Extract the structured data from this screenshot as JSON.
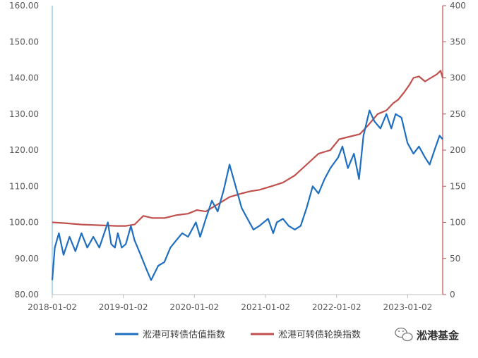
{
  "chart_data": {
    "type": "line",
    "x_ticks": [
      "2018-01-02",
      "2019-01-02",
      "2020-01-02",
      "2021-01-02",
      "2022-01-02",
      "2023-01-02"
    ],
    "y_left": {
      "range": [
        80,
        160
      ],
      "ticks": [
        "80.00",
        "90.00",
        "100.00",
        "110.00",
        "120.00",
        "130.00",
        "140.00",
        "150.00",
        "160.00"
      ]
    },
    "y_right": {
      "range": [
        0,
        400
      ],
      "ticks": [
        "0",
        "50",
        "100",
        "150",
        "200",
        "250",
        "300",
        "350",
        "400"
      ]
    },
    "grid": false,
    "legend_position": "bottom",
    "series": [
      {
        "name": "淞港可转债估值指数",
        "axis": "left",
        "color": "#1f6fc1",
        "points": [
          [
            "2018-01-02",
            84
          ],
          [
            "2018-01-15",
            93
          ],
          [
            "2018-02-05",
            97
          ],
          [
            "2018-03-01",
            91
          ],
          [
            "2018-04-01",
            96
          ],
          [
            "2018-05-01",
            92
          ],
          [
            "2018-06-01",
            97
          ],
          [
            "2018-07-01",
            93
          ],
          [
            "2018-08-01",
            96
          ],
          [
            "2018-09-01",
            93
          ],
          [
            "2018-10-15",
            100
          ],
          [
            "2018-11-01",
            94
          ],
          [
            "2018-11-20",
            93
          ],
          [
            "2018-12-05",
            97
          ],
          [
            "2018-12-25",
            93
          ],
          [
            "2019-01-15",
            94
          ],
          [
            "2019-02-10",
            99
          ],
          [
            "2019-03-01",
            95
          ],
          [
            "2019-04-01",
            91
          ],
          [
            "2019-05-01",
            87
          ],
          [
            "2019-05-25",
            84
          ],
          [
            "2019-07-01",
            88
          ],
          [
            "2019-08-01",
            89
          ],
          [
            "2019-09-01",
            93
          ],
          [
            "2019-10-01",
            95
          ],
          [
            "2019-11-01",
            97
          ],
          [
            "2019-12-01",
            96
          ],
          [
            "2020-01-10",
            100
          ],
          [
            "2020-02-01",
            96
          ],
          [
            "2020-03-01",
            101
          ],
          [
            "2020-04-01",
            106
          ],
          [
            "2020-05-01",
            103
          ],
          [
            "2020-06-01",
            109
          ],
          [
            "2020-07-01",
            116
          ],
          [
            "2020-08-01",
            110
          ],
          [
            "2020-09-01",
            104
          ],
          [
            "2020-10-01",
            101
          ],
          [
            "2020-11-01",
            98
          ],
          [
            "2020-12-01",
            99
          ],
          [
            "2021-01-15",
            101
          ],
          [
            "2021-02-10",
            97
          ],
          [
            "2021-03-01",
            100
          ],
          [
            "2021-04-01",
            101
          ],
          [
            "2021-05-01",
            99
          ],
          [
            "2021-06-01",
            98
          ],
          [
            "2021-07-01",
            99
          ],
          [
            "2021-08-01",
            104
          ],
          [
            "2021-09-01",
            110
          ],
          [
            "2021-10-01",
            108
          ],
          [
            "2021-11-01",
            112
          ],
          [
            "2021-12-01",
            115
          ],
          [
            "2022-01-10",
            118
          ],
          [
            "2022-02-01",
            121
          ],
          [
            "2022-03-01",
            115
          ],
          [
            "2022-04-01",
            119
          ],
          [
            "2022-04-27",
            112
          ],
          [
            "2022-05-20",
            124
          ],
          [
            "2022-06-20",
            131
          ],
          [
            "2022-07-15",
            128
          ],
          [
            "2022-08-15",
            126
          ],
          [
            "2022-09-15",
            130
          ],
          [
            "2022-10-10",
            126
          ],
          [
            "2022-11-01",
            130
          ],
          [
            "2022-12-01",
            129
          ],
          [
            "2023-01-01",
            122
          ],
          [
            "2023-02-01",
            119
          ],
          [
            "2023-03-01",
            121
          ],
          [
            "2023-04-01",
            118
          ],
          [
            "2023-04-25",
            116
          ],
          [
            "2023-05-20",
            120
          ],
          [
            "2023-06-15",
            124
          ],
          [
            "2023-07-01",
            123
          ]
        ]
      },
      {
        "name": "淞港可转债轮换指数",
        "axis": "right",
        "color": "#c0504d",
        "points": [
          [
            "2018-01-02",
            100
          ],
          [
            "2018-03-01",
            99
          ],
          [
            "2018-06-01",
            97
          ],
          [
            "2018-09-01",
            96
          ],
          [
            "2018-12-01",
            95
          ],
          [
            "2019-01-15",
            95
          ],
          [
            "2019-03-01",
            97
          ],
          [
            "2019-04-15",
            109
          ],
          [
            "2019-06-01",
            106
          ],
          [
            "2019-08-01",
            106
          ],
          [
            "2019-10-01",
            110
          ],
          [
            "2019-12-01",
            112
          ],
          [
            "2020-01-15",
            117
          ],
          [
            "2020-03-01",
            115
          ],
          [
            "2020-05-01",
            125
          ],
          [
            "2020-07-01",
            135
          ],
          [
            "2020-09-01",
            140
          ],
          [
            "2020-10-15",
            143
          ],
          [
            "2020-12-01",
            145
          ],
          [
            "2021-02-01",
            150
          ],
          [
            "2021-04-01",
            155
          ],
          [
            "2021-06-01",
            165
          ],
          [
            "2021-08-01",
            180
          ],
          [
            "2021-10-01",
            195
          ],
          [
            "2021-12-01",
            200
          ],
          [
            "2022-01-15",
            215
          ],
          [
            "2022-03-01",
            218
          ],
          [
            "2022-05-01",
            222
          ],
          [
            "2022-06-15",
            235
          ],
          [
            "2022-08-01",
            250
          ],
          [
            "2022-09-15",
            255
          ],
          [
            "2022-10-20",
            265
          ],
          [
            "2022-11-15",
            270
          ],
          [
            "2022-12-15",
            280
          ],
          [
            "2023-01-10",
            290
          ],
          [
            "2023-02-01",
            300
          ],
          [
            "2023-03-01",
            302
          ],
          [
            "2023-04-01",
            295
          ],
          [
            "2023-05-01",
            300
          ],
          [
            "2023-06-01",
            305
          ],
          [
            "2023-06-20",
            310
          ],
          [
            "2023-07-01",
            300
          ]
        ]
      }
    ]
  },
  "watermark": {
    "text": "淞港基金",
    "icon": "wechat-icon"
  }
}
